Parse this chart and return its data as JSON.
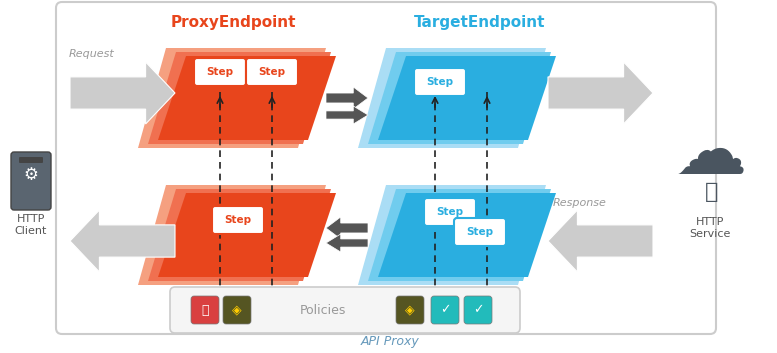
{
  "bg_color": "#ffffff",
  "title": "API Proxy",
  "proxy_endpoint_label": "ProxyEndpoint",
  "target_endpoint_label": "TargetEndpoint",
  "proxy_color_dark": "#e8451c",
  "proxy_color_mid": "#f07050",
  "proxy_color_light": "#f5a080",
  "target_color_dark": "#2aaee0",
  "target_color_mid": "#70ccee",
  "target_color_light": "#aaddf5",
  "step_text_proxy": "#e8451c",
  "step_text_target": "#2aaee0",
  "step_border_proxy": "#e8451c",
  "step_border_target": "#2aaee0",
  "arrow_fill": "#cccccc",
  "arrow_edge": "#aaaaaa",
  "dashed_color": "#222222",
  "label_gray": "#999999",
  "request_label": "Request",
  "response_label": "Response",
  "http_client_label": "HTTP\nClient",
  "http_service_label": "HTTP\nService",
  "policies_label": "Policies",
  "icon_lock_color": "#d94040",
  "icon_route_color": "#555522",
  "icon_cloud_color": "#22bbbb",
  "small_arrow_color": "#888888",
  "outer_edge": "#cccccc",
  "connector_dark": "#555555"
}
